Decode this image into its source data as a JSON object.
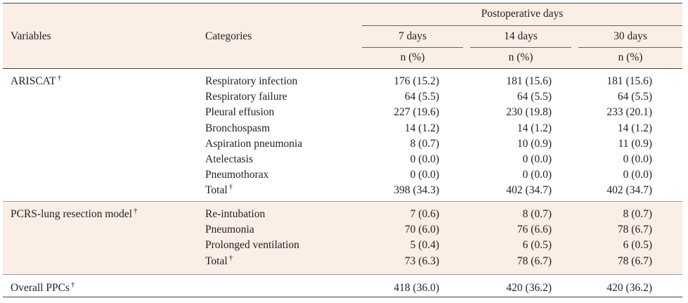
{
  "header": {
    "variables": "Variables",
    "categories": "Categories",
    "postoperative_days": "Postoperative days",
    "day_columns": [
      "7 days",
      "14 days",
      "30 days"
    ],
    "unit": "n (%)"
  },
  "dagger": "†",
  "groups": [
    {
      "variable": "ARISCAT",
      "rows": [
        {
          "category": "Respiratory infection",
          "values": [
            "176 (15.2)",
            "181 (15.6)",
            "181 (15.6)"
          ]
        },
        {
          "category": "Respiratory failure",
          "values": [
            "64 (5.5)",
            "64 (5.5)",
            "64 (5.5)"
          ]
        },
        {
          "category": "Pleural effusion",
          "values": [
            "227 (19.6)",
            "230 (19.8)",
            "233 (20.1)"
          ]
        },
        {
          "category": "Bronchospasm",
          "values": [
            "14 (1.2)",
            "14 (1.2)",
            "14 (1.2)"
          ]
        },
        {
          "category": "Aspiration pneumonia",
          "values": [
            "8 (0.7)",
            "10 (0.9)",
            "11 (0.9)"
          ]
        },
        {
          "category": "Atelectasis",
          "values": [
            "0 (0.0)",
            "0 (0.0)",
            "0 (0.0)"
          ]
        },
        {
          "category": "Pneumothorax",
          "values": [
            "0 (0.0)",
            "0 (0.0)",
            "0 (0.0)"
          ]
        },
        {
          "category": "Total",
          "values": [
            "398 (34.3)",
            "402 (34.7)",
            "402 (34.7)"
          ]
        }
      ]
    },
    {
      "variable": "PCRS-lung resection model",
      "rows": [
        {
          "category": "Re-intubation",
          "values": [
            "7 (0.6)",
            "8 (0.7)",
            "8 (0.7)"
          ]
        },
        {
          "category": "Pneumonia",
          "values": [
            "70 (6.0)",
            "76 (6.6)",
            "78 (6.7)"
          ]
        },
        {
          "category": "Prolonged ventilation",
          "values": [
            "5 (0.4)",
            "6 (0.5)",
            "6 (0.5)"
          ]
        },
        {
          "category": "Total",
          "values": [
            "73 (6.3)",
            "78 (6.7)",
            "78 (6.7)"
          ]
        }
      ]
    }
  ],
  "overall": {
    "variable": "Overall PPCs",
    "values": [
      "418 (36.0)",
      "420 (36.2)",
      "420 (36.2)"
    ]
  }
}
